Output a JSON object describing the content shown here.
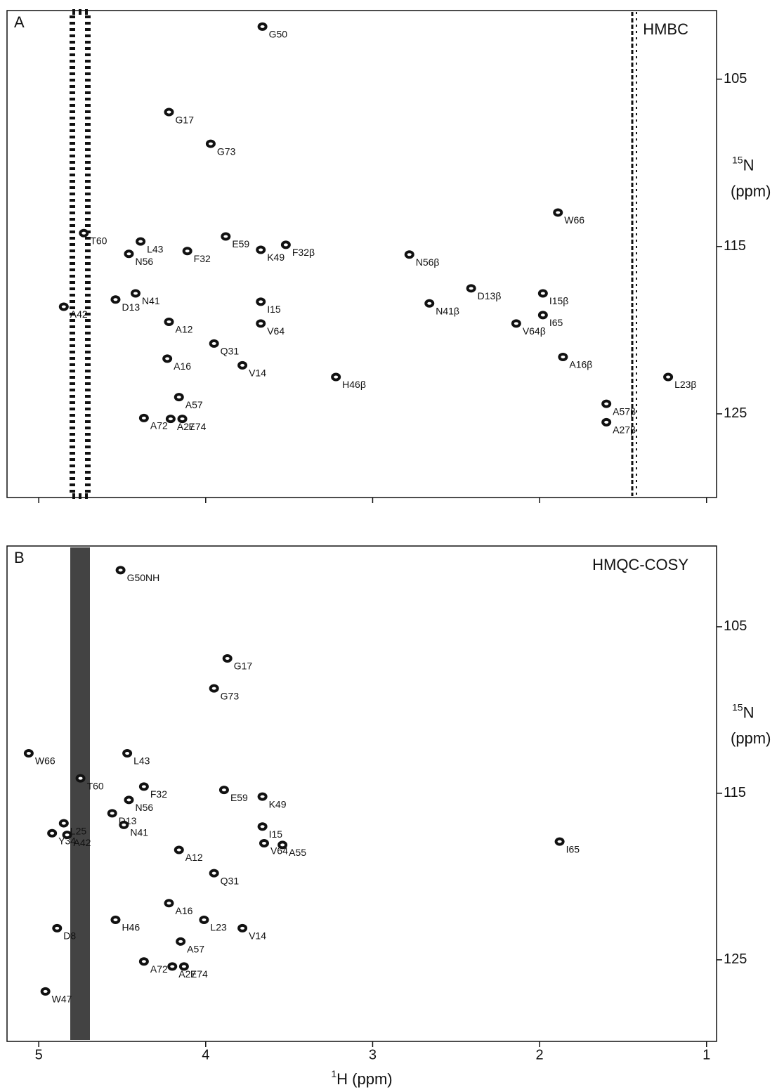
{
  "chart_data": [
    {
      "type": "scatter",
      "panel": "A",
      "title": "HMBC",
      "xlim": [
        5.19,
        0.94
      ],
      "xticks": [
        5,
        4,
        3,
        2,
        1
      ],
      "ylim": [
        100.9,
        130
      ],
      "yticks": [
        105,
        115,
        125
      ],
      "ylabel": {
        "isotope": "15",
        "nucleus": "N",
        "unit": "(ppm)"
      },
      "color": "#111111",
      "points": [
        {
          "label": "G50",
          "x": 3.66,
          "y": 101.86
        },
        {
          "label": "G17",
          "x": 4.22,
          "y": 106.97
        },
        {
          "label": "G73",
          "x": 3.97,
          "y": 108.86
        },
        {
          "label": "W66",
          "x": 1.89,
          "y": 112.97
        },
        {
          "label": "T60",
          "x": 4.73,
          "y": 114.2
        },
        {
          "label": "L43",
          "x": 4.39,
          "y": 114.7
        },
        {
          "label": "F32",
          "x": 4.11,
          "y": 115.27
        },
        {
          "label": "E59",
          "x": 3.88,
          "y": 114.4
        },
        {
          "label": "K49",
          "x": 3.67,
          "y": 115.2
        },
        {
          "label": "F32β",
          "x": 3.52,
          "y": 114.9
        },
        {
          "label": "N56",
          "x": 4.46,
          "y": 115.44
        },
        {
          "label": "N56β",
          "x": 2.78,
          "y": 115.48
        },
        {
          "label": "D13",
          "x": 4.54,
          "y": 118.17
        },
        {
          "label": "N41",
          "x": 4.42,
          "y": 117.8
        },
        {
          "label": "A42",
          "x": 4.85,
          "y": 118.6
        },
        {
          "label": "D13β",
          "x": 2.41,
          "y": 117.5
        },
        {
          "label": "N41β",
          "x": 2.66,
          "y": 118.4
        },
        {
          "label": "I15",
          "x": 3.67,
          "y": 118.3
        },
        {
          "label": "V64",
          "x": 3.67,
          "y": 119.6
        },
        {
          "label": "I15β",
          "x": 1.98,
          "y": 117.8
        },
        {
          "label": "I65",
          "x": 1.98,
          "y": 119.1
        },
        {
          "label": "V64β",
          "x": 2.14,
          "y": 119.6
        },
        {
          "label": "A12",
          "x": 4.22,
          "y": 119.5
        },
        {
          "label": "Q31",
          "x": 3.95,
          "y": 120.8
        },
        {
          "label": "A16",
          "x": 4.23,
          "y": 121.7
        },
        {
          "label": "A16β",
          "x": 1.86,
          "y": 121.6
        },
        {
          "label": "H46β",
          "x": 3.22,
          "y": 122.8
        },
        {
          "label": "L23β",
          "x": 1.23,
          "y": 122.8
        },
        {
          "label": "V14",
          "x": 3.78,
          "y": 122.1
        },
        {
          "label": "A57",
          "x": 4.16,
          "y": 124.0
        },
        {
          "label": "A57β",
          "x": 1.6,
          "y": 124.4
        },
        {
          "label": "E74",
          "x": 4.14,
          "y": 125.3
        },
        {
          "label": "A72",
          "x": 4.37,
          "y": 125.25
        },
        {
          "label": "A27",
          "x": 4.21,
          "y": 125.3
        },
        {
          "label": "A27β",
          "x": 1.6,
          "y": 125.5
        }
      ]
    },
    {
      "type": "scatter",
      "panel": "B",
      "title": "HMQC-COSY",
      "xlim": [
        5.19,
        0.94
      ],
      "xticks": [
        5,
        4,
        3,
        2,
        1
      ],
      "ylim": [
        100.15,
        129.9
      ],
      "yticks": [
        105,
        115,
        125
      ],
      "xlabel": {
        "isotope": "1",
        "text": "H (ppm)"
      },
      "ylabel": {
        "isotope": "15",
        "nucleus": "N",
        "unit": "(ppm)"
      },
      "color": "#111111",
      "points": [
        {
          "label": "G50NH",
          "x": 4.51,
          "y": 101.6
        },
        {
          "label": "G17",
          "x": 3.87,
          "y": 106.9
        },
        {
          "label": "G73",
          "x": 3.95,
          "y": 108.7
        },
        {
          "label": "W66",
          "x": 5.06,
          "y": 112.6
        },
        {
          "label": "L43",
          "x": 4.47,
          "y": 112.6
        },
        {
          "label": "T60",
          "x": 4.75,
          "y": 114.1
        },
        {
          "label": "F32",
          "x": 4.37,
          "y": 114.6
        },
        {
          "label": "E59",
          "x": 3.89,
          "y": 114.8
        },
        {
          "label": "K49",
          "x": 3.66,
          "y": 115.2
        },
        {
          "label": "N56",
          "x": 4.46,
          "y": 115.4
        },
        {
          "label": "D13",
          "x": 4.56,
          "y": 116.2
        },
        {
          "label": "L25",
          "x": 4.85,
          "y": 116.8
        },
        {
          "label": "Y34",
          "x": 4.92,
          "y": 117.4
        },
        {
          "label": "N41",
          "x": 4.49,
          "y": 116.9
        },
        {
          "label": "A42",
          "x": 4.83,
          "y": 117.5
        },
        {
          "label": "I15",
          "x": 3.66,
          "y": 117.0
        },
        {
          "label": "I65",
          "x": 1.88,
          "y": 117.9
        },
        {
          "label": "A12",
          "x": 4.16,
          "y": 118.4
        },
        {
          "label": "V64",
          "x": 3.65,
          "y": 118.0
        },
        {
          "label": "A55",
          "x": 3.54,
          "y": 118.1
        },
        {
          "label": "Q31",
          "x": 3.95,
          "y": 119.8
        },
        {
          "label": "A16",
          "x": 4.22,
          "y": 121.6
        },
        {
          "label": "L23",
          "x": 4.01,
          "y": 122.6
        },
        {
          "label": "H46",
          "x": 4.54,
          "y": 122.6
        },
        {
          "label": "V14",
          "x": 3.78,
          "y": 123.1
        },
        {
          "label": "D8",
          "x": 4.89,
          "y": 123.1
        },
        {
          "label": "A57",
          "x": 4.15,
          "y": 123.9
        },
        {
          "label": "A72",
          "x": 4.37,
          "y": 125.1
        },
        {
          "label": "A27",
          "x": 4.2,
          "y": 125.4
        },
        {
          "label": "E74",
          "x": 4.13,
          "y": 125.4
        },
        {
          "label": "W47",
          "x": 4.96,
          "y": 126.9
        }
      ]
    }
  ]
}
